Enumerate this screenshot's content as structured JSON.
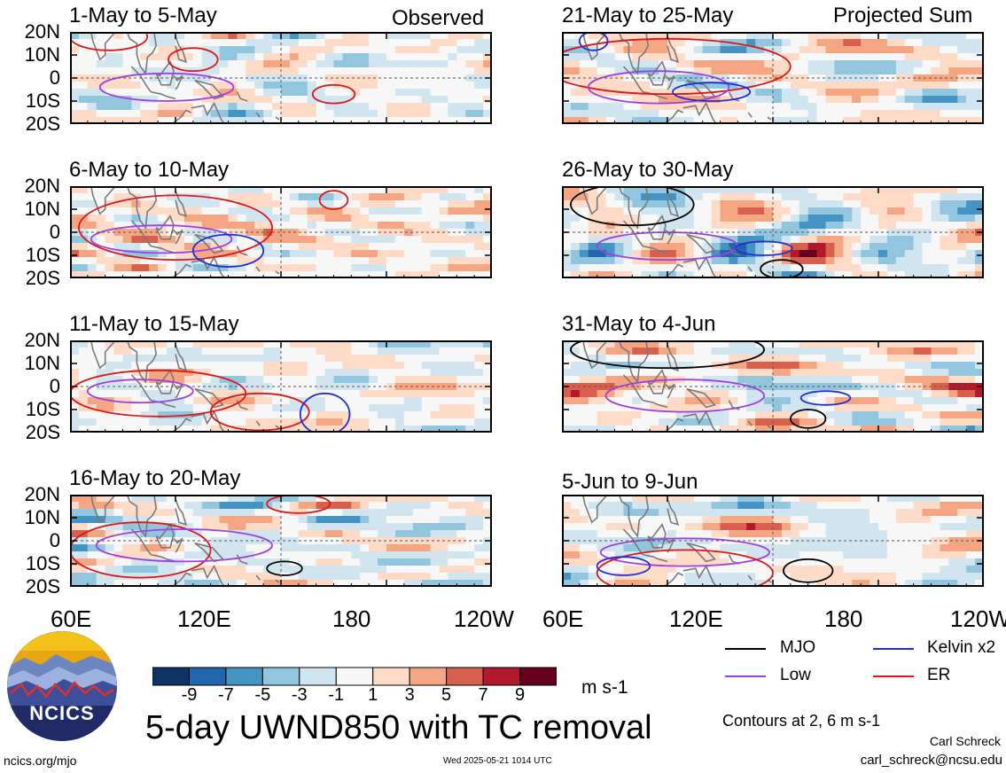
{
  "chart_data": {
    "type": "heatmap",
    "title": "5-day UWND850 with TC removal",
    "units": "m s-1",
    "x_ticks": [
      "60E",
      "120E",
      "180",
      "120W"
    ],
    "y_ticks": [
      "20N",
      "10N",
      "0",
      "10S",
      "20S"
    ],
    "colorbar": {
      "labels": [
        "-9",
        "-7",
        "-5",
        "-3",
        "-1",
        "1",
        "3",
        "5",
        "7",
        "9"
      ],
      "colors": [
        "#0d3263",
        "#2166ac",
        "#4393c3",
        "#92c5de",
        "#d1e5f0",
        "#f7f7f7",
        "#fddbc7",
        "#f4a582",
        "#d6604d",
        "#b2182b",
        "#67001f"
      ]
    },
    "panels": [
      {
        "label": "1-May to 5-May",
        "tag": "Observed"
      },
      {
        "label": "21-May to 25-May",
        "tag": "Projected Sum"
      },
      {
        "label": "6-May to 10-May"
      },
      {
        "label": "26-May to 30-May"
      },
      {
        "label": "11-May to 15-May"
      },
      {
        "label": "31-May to 4-Jun"
      },
      {
        "label": "16-May to 20-May"
      },
      {
        "label": "5-Jun to 9-Jun"
      }
    ],
    "legend": [
      {
        "name": "MJO",
        "color": "#000000"
      },
      {
        "name": "Kelvin x2",
        "color": "#1f2fd6"
      },
      {
        "name": "Low",
        "color": "#a040e0"
      },
      {
        "name": "ER",
        "color": "#e01515"
      }
    ],
    "contours_note": "Contours at 2, 6 m s-1"
  },
  "footer": {
    "url": "ncics.org/mjo",
    "timestamp": "Wed 2025-05-21 1014 UTC",
    "author": "Carl Schreck",
    "email": "carl_schreck@ncsu.edu",
    "logo_text": "NCICS"
  }
}
